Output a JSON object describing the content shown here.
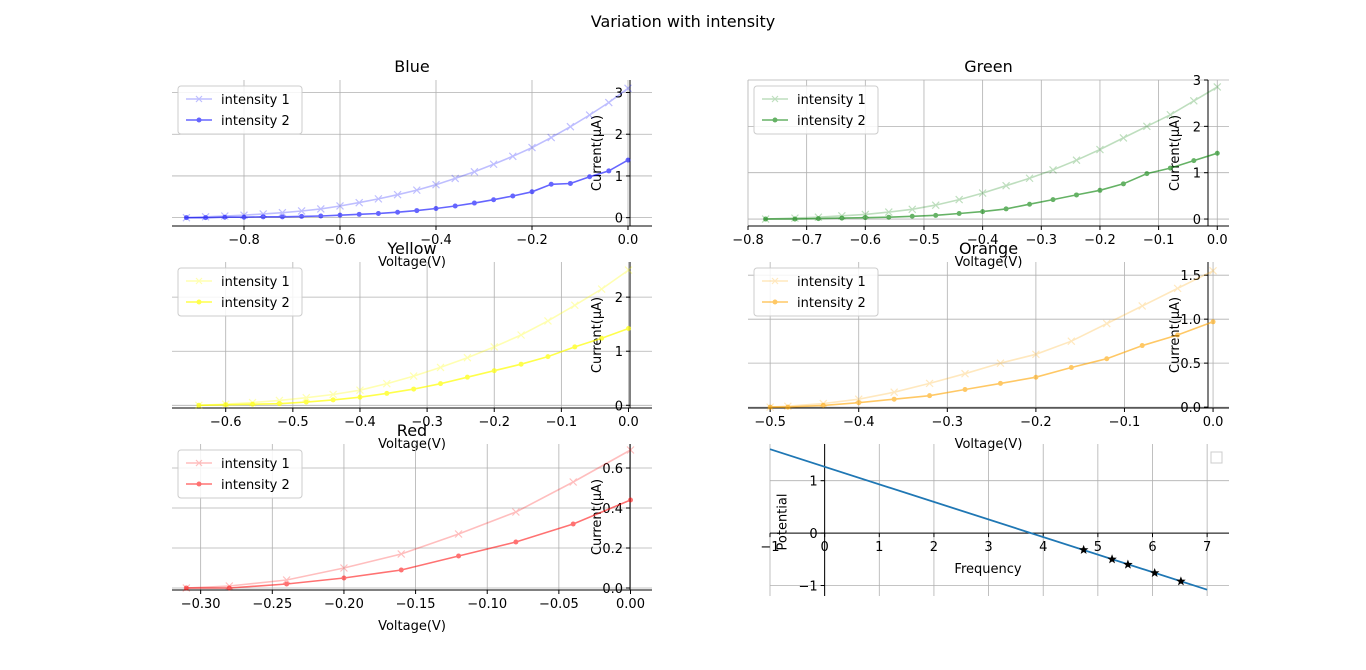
{
  "figure": {
    "title": "Variation with intensity"
  },
  "chart_data": [
    {
      "type": "line",
      "title": "Blue",
      "xlabel": "Voltage(V)",
      "ylabel": "Current(μA)",
      "xlim": [
        -0.95,
        0.05
      ],
      "ylim": [
        -0.2,
        3.3
      ],
      "xticks": [
        -0.8,
        -0.6,
        -0.4,
        -0.2,
        0.0
      ],
      "xtick_labels": [
        "−0.8",
        "−0.6",
        "−0.4",
        "−0.2",
        "0.0"
      ],
      "yticks": [
        0,
        1,
        2,
        3
      ],
      "ytick_labels": [
        "0",
        "1",
        "2",
        "3"
      ],
      "grid": true,
      "legend": "upper-left",
      "series": [
        {
          "name": "intensity 1",
          "color": "#0000ff",
          "alpha": 0.25,
          "marker": "x",
          "x": [
            -0.92,
            -0.88,
            -0.84,
            -0.8,
            -0.76,
            -0.72,
            -0.68,
            -0.64,
            -0.6,
            -0.56,
            -0.52,
            -0.48,
            -0.44,
            -0.4,
            -0.36,
            -0.32,
            -0.28,
            -0.24,
            -0.2,
            -0.16,
            -0.12,
            -0.08,
            -0.04,
            0.0
          ],
          "y": [
            0.0,
            0.02,
            0.04,
            0.06,
            0.09,
            0.12,
            0.16,
            0.21,
            0.28,
            0.36,
            0.45,
            0.55,
            0.66,
            0.79,
            0.94,
            1.1,
            1.28,
            1.47,
            1.68,
            1.92,
            2.18,
            2.46,
            2.76,
            3.1
          ]
        },
        {
          "name": "intensity 2",
          "color": "#0000ff",
          "alpha": 0.6,
          "marker": "o",
          "x": [
            -0.92,
            -0.88,
            -0.84,
            -0.8,
            -0.76,
            -0.72,
            -0.68,
            -0.64,
            -0.6,
            -0.56,
            -0.52,
            -0.48,
            -0.44,
            -0.4,
            -0.36,
            -0.32,
            -0.28,
            -0.24,
            -0.2,
            -0.16,
            -0.12,
            -0.08,
            -0.04,
            0.0
          ],
          "y": [
            0.0,
            0.0,
            0.01,
            0.01,
            0.02,
            0.02,
            0.03,
            0.04,
            0.06,
            0.08,
            0.1,
            0.13,
            0.17,
            0.22,
            0.28,
            0.35,
            0.43,
            0.52,
            0.62,
            0.8,
            0.82,
            0.98,
            1.12,
            1.38
          ]
        }
      ]
    },
    {
      "type": "line",
      "title": "Green",
      "xlabel": "Voltage(V)",
      "ylabel": "Current(μA)",
      "xlim": [
        -0.8,
        0.02
      ],
      "ylim": [
        -0.15,
        3.0
      ],
      "xticks": [
        -0.8,
        -0.7,
        -0.6,
        -0.5,
        -0.4,
        -0.3,
        -0.2,
        -0.1,
        0.0
      ],
      "xtick_labels": [
        "−0.8",
        "−0.7",
        "−0.6",
        "−0.5",
        "−0.4",
        "−0.3",
        "−0.2",
        "−0.1",
        "0.0"
      ],
      "yticks": [
        0,
        1,
        2,
        3
      ],
      "ytick_labels": [
        "0",
        "1",
        "2",
        "3"
      ],
      "grid": true,
      "legend": "upper-left",
      "series": [
        {
          "name": "intensity 1",
          "color": "#008000",
          "alpha": 0.25,
          "marker": "x",
          "x": [
            -0.77,
            -0.72,
            -0.68,
            -0.64,
            -0.6,
            -0.56,
            -0.52,
            -0.48,
            -0.44,
            -0.4,
            -0.36,
            -0.32,
            -0.28,
            -0.24,
            -0.2,
            -0.16,
            -0.12,
            -0.08,
            -0.04,
            0.0
          ],
          "y": [
            0.0,
            0.02,
            0.04,
            0.07,
            0.1,
            0.15,
            0.21,
            0.3,
            0.42,
            0.56,
            0.72,
            0.88,
            1.06,
            1.27,
            1.5,
            1.75,
            2.0,
            2.25,
            2.55,
            2.85
          ]
        },
        {
          "name": "intensity 2",
          "color": "#008000",
          "alpha": 0.6,
          "marker": "o",
          "x": [
            -0.77,
            -0.72,
            -0.68,
            -0.64,
            -0.6,
            -0.56,
            -0.52,
            -0.48,
            -0.44,
            -0.4,
            -0.36,
            -0.32,
            -0.28,
            -0.24,
            -0.2,
            -0.16,
            -0.12,
            -0.08,
            -0.04,
            0.0
          ],
          "y": [
            0.0,
            0.0,
            0.01,
            0.02,
            0.03,
            0.04,
            0.06,
            0.08,
            0.12,
            0.16,
            0.22,
            0.32,
            0.42,
            0.52,
            0.62,
            0.76,
            0.98,
            1.1,
            1.26,
            1.42
          ]
        }
      ]
    },
    {
      "type": "line",
      "title": "Yellow",
      "xlabel": "Voltage(V)",
      "ylabel": "Current(μA)",
      "xlim": [
        -0.68,
        0.035
      ],
      "ylim": [
        -0.05,
        2.65
      ],
      "xticks": [
        -0.6,
        -0.5,
        -0.4,
        -0.3,
        -0.2,
        -0.1,
        0.0
      ],
      "xtick_labels": [
        "−0.6",
        "−0.5",
        "−0.4",
        "−0.3",
        "−0.2",
        "−0.1",
        "0.0"
      ],
      "yticks": [
        0,
        1,
        2
      ],
      "ytick_labels": [
        "0",
        "1",
        "2"
      ],
      "grid": true,
      "legend": "upper-left",
      "series": [
        {
          "name": "intensity 1",
          "color": "#ffff00",
          "alpha": 0.3,
          "marker": "x",
          "x": [
            -0.64,
            -0.6,
            -0.56,
            -0.52,
            -0.48,
            -0.44,
            -0.4,
            -0.36,
            -0.32,
            -0.28,
            -0.24,
            -0.2,
            -0.16,
            -0.12,
            -0.08,
            -0.04,
            0.0
          ],
          "y": [
            0.0,
            0.02,
            0.05,
            0.09,
            0.14,
            0.2,
            0.28,
            0.4,
            0.54,
            0.7,
            0.88,
            1.08,
            1.3,
            1.56,
            1.85,
            2.15,
            2.5
          ]
        },
        {
          "name": "intensity 2",
          "color": "#ffff00",
          "alpha": 0.7,
          "marker": "o",
          "x": [
            -0.64,
            -0.6,
            -0.56,
            -0.52,
            -0.48,
            -0.44,
            -0.4,
            -0.36,
            -0.32,
            -0.28,
            -0.24,
            -0.2,
            -0.16,
            -0.12,
            -0.08,
            -0.04,
            0.0
          ],
          "y": [
            0.0,
            0.01,
            0.02,
            0.03,
            0.06,
            0.1,
            0.15,
            0.22,
            0.3,
            0.4,
            0.52,
            0.64,
            0.76,
            0.9,
            1.08,
            1.24,
            1.42
          ]
        }
      ]
    },
    {
      "type": "line",
      "title": "Orange",
      "xlabel": "Voltage(V)",
      "ylabel": "Current(μA)",
      "xlim": [
        -0.525,
        0.018
      ],
      "ylim": [
        -0.01,
        1.65
      ],
      "xticks": [
        -0.5,
        -0.4,
        -0.3,
        -0.2,
        -0.1,
        0.0
      ],
      "xtick_labels": [
        "−0.5",
        "−0.4",
        "−0.3",
        "−0.2",
        "−0.1",
        "0.0"
      ],
      "yticks": [
        0.0,
        0.5,
        1.0,
        1.5
      ],
      "ytick_labels": [
        "0.0",
        "0.5",
        "1.0",
        "1.5"
      ],
      "grid": true,
      "legend": "upper-left",
      "series": [
        {
          "name": "intensity 1",
          "color": "#ffa500",
          "alpha": 0.25,
          "marker": "x",
          "x": [
            -0.5,
            -0.48,
            -0.44,
            -0.4,
            -0.36,
            -0.32,
            -0.28,
            -0.24,
            -0.2,
            -0.16,
            -0.12,
            -0.08,
            -0.04,
            0.0
          ],
          "y": [
            0.0,
            0.01,
            0.04,
            0.09,
            0.17,
            0.27,
            0.38,
            0.5,
            0.6,
            0.75,
            0.95,
            1.15,
            1.35,
            1.55
          ]
        },
        {
          "name": "intensity 2",
          "color": "#ffa500",
          "alpha": 0.6,
          "marker": "o",
          "x": [
            -0.5,
            -0.48,
            -0.44,
            -0.4,
            -0.36,
            -0.32,
            -0.28,
            -0.24,
            -0.2,
            -0.16,
            -0.12,
            -0.08,
            -0.04,
            0.0
          ],
          "y": [
            0.0,
            0.0,
            0.02,
            0.05,
            0.09,
            0.13,
            0.2,
            0.27,
            0.34,
            0.45,
            0.55,
            0.7,
            0.82,
            0.97
          ]
        }
      ]
    },
    {
      "type": "line",
      "title": "Red",
      "xlabel": "Voltage(V)",
      "ylabel": "Current(μA)",
      "xlim": [
        -0.32,
        0.015
      ],
      "ylim": [
        -0.01,
        0.72
      ],
      "xticks": [
        -0.3,
        -0.25,
        -0.2,
        -0.15,
        -0.1,
        -0.05,
        0.0
      ],
      "xtick_labels": [
        "−0.30",
        "−0.25",
        "−0.20",
        "−0.15",
        "−0.10",
        "−0.05",
        "0.00"
      ],
      "yticks": [
        0.0,
        0.2,
        0.4,
        0.6
      ],
      "ytick_labels": [
        "0.0",
        "0.2",
        "0.4",
        "0.6"
      ],
      "grid": true,
      "legend": "upper-left",
      "series": [
        {
          "name": "intensity 1",
          "color": "#ff0000",
          "alpha": 0.25,
          "marker": "x",
          "x": [
            -0.31,
            -0.28,
            -0.24,
            -0.2,
            -0.16,
            -0.12,
            -0.08,
            -0.04,
            0.0
          ],
          "y": [
            0.0,
            0.01,
            0.04,
            0.1,
            0.17,
            0.27,
            0.38,
            0.53,
            0.69
          ]
        },
        {
          "name": "intensity 2",
          "color": "#ff0000",
          "alpha": 0.55,
          "marker": "o",
          "x": [
            -0.31,
            -0.28,
            -0.24,
            -0.2,
            -0.16,
            -0.12,
            -0.08,
            -0.04,
            0.0
          ],
          "y": [
            0.0,
            0.0,
            0.02,
            0.05,
            0.09,
            0.16,
            0.23,
            0.32,
            0.44
          ]
        }
      ]
    },
    {
      "type": "line",
      "title": "",
      "xlabel": "Frequency",
      "ylabel": "Potential",
      "xlim": [
        -1.0,
        7.4
      ],
      "ylim": [
        -1.2,
        1.7
      ],
      "xticks": [
        -1,
        0,
        1,
        2,
        3,
        4,
        5,
        6,
        7
      ],
      "xtick_labels": [
        "−1",
        "0",
        "1",
        "2",
        "3",
        "4",
        "5",
        "6",
        "7"
      ],
      "yticks": [
        -1,
        0,
        1
      ],
      "ytick_labels": [
        "−1",
        "0",
        "1"
      ],
      "grid": true,
      "legend": "upper-right",
      "series": [
        {
          "name": "",
          "color": "#1f77b4",
          "alpha": 1,
          "marker": "none",
          "x": [
            -1.0,
            7.0
          ],
          "y": [
            1.6,
            -1.08
          ]
        },
        {
          "name": "",
          "color": "#000000",
          "alpha": 1,
          "marker": "star",
          "linestyle": "none",
          "x": [
            4.74,
            5.26,
            5.55,
            6.04,
            6.52
          ],
          "y": [
            -0.32,
            -0.5,
            -0.6,
            -0.76,
            -0.92
          ]
        }
      ]
    }
  ]
}
